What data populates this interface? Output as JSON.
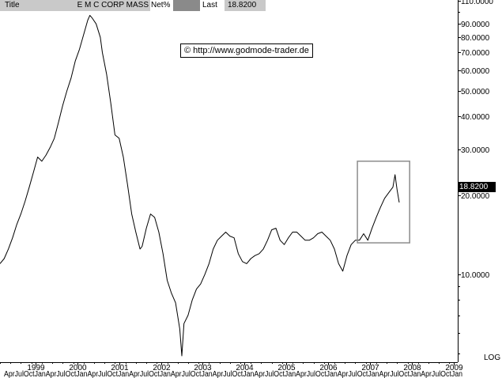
{
  "header": {
    "title_label": "Title",
    "symbol_name": "E M C CORP MASS",
    "mode_label": "Net%",
    "last_label": "Last",
    "last_value": "18.8200"
  },
  "watermark": "© http://www.godmode-trader.de",
  "scale_label": "LOG",
  "last_price_tag": "18.8200",
  "colors": {
    "line": "#000000",
    "background": "#ffffff",
    "box": "#8c8c8c",
    "header_grey": "#c9c9c9",
    "header_dark": "#8a8a8a"
  },
  "chart_data": {
    "type": "line",
    "title": "E M C CORP MASS",
    "yscale": "log",
    "ylim": [
      4.7,
      111
    ],
    "xlim": [
      1998.15,
      2009.1
    ],
    "y_ticks": [
      {
        "value": 110,
        "label": "110.0000"
      },
      {
        "value": 90,
        "label": "90.0000"
      },
      {
        "value": 80,
        "label": "80.0000"
      },
      {
        "value": 70,
        "label": "70.0000"
      },
      {
        "value": 60,
        "label": "60.0000"
      },
      {
        "value": 50,
        "label": "50.0000"
      },
      {
        "value": 40,
        "label": "40.0000"
      },
      {
        "value": 30,
        "label": "30.0000"
      },
      {
        "value": 20,
        "label": "20.0000"
      },
      {
        "value": 10,
        "label": "10.0000"
      }
    ],
    "y_minor_ticks": [
      100,
      9,
      8,
      7,
      6,
      5
    ],
    "x_year_ticks": [
      "1999",
      "2000",
      "2001",
      "2002",
      "2003",
      "2004",
      "2005",
      "2006",
      "2007",
      "2008",
      "2009"
    ],
    "x_year_values": [
      1999,
      2000,
      2001,
      2002,
      2003,
      2004,
      2005,
      2006,
      2007,
      2008,
      2009
    ],
    "x_sub_labels": "AprJulOctJanAprJulOctJanAprJulOctJanAprJulOctJanAprJulOctJanAprJulOctJanAprJulOctJanAprJulOctJanAprJulOctJanAprJulOctJanAprJulOctJan",
    "series": [
      {
        "x": [
          1998.15,
          1998.25,
          1998.35,
          1998.45,
          1998.55,
          1998.65,
          1998.75,
          1998.85,
          1998.95,
          1999.05,
          1999.15,
          1999.25,
          1999.35,
          1999.45,
          1999.55,
          1999.65,
          1999.75,
          1999.85,
          1999.95,
          2000.05,
          2000.15,
          2000.25,
          2000.3,
          2000.35,
          2000.45,
          2000.55,
          2000.6,
          2000.7,
          2000.8,
          2000.9,
          2001.0,
          2001.1,
          2001.2,
          2001.3,
          2001.4,
          2001.5,
          2001.55,
          2001.65,
          2001.75,
          2001.85,
          2001.95,
          2002.05,
          2002.15,
          2002.25,
          2002.35,
          2002.45,
          2002.5,
          2002.55,
          2002.65,
          2002.75,
          2002.85,
          2002.95,
          2003.05,
          2003.15,
          2003.25,
          2003.35,
          2003.45,
          2003.55,
          2003.65,
          2003.75,
          2003.85,
          2003.95,
          2004.05,
          2004.15,
          2004.25,
          2004.35,
          2004.45,
          2004.55,
          2004.65,
          2004.75,
          2004.85,
          2004.95,
          2005.05,
          2005.15,
          2005.25,
          2005.35,
          2005.45,
          2005.55,
          2005.65,
          2005.75,
          2005.85,
          2005.95,
          2006.05,
          2006.15,
          2006.25,
          2006.35,
          2006.45,
          2006.55,
          2006.65,
          2006.75,
          2006.85,
          2006.95,
          2007.05,
          2007.15,
          2007.25,
          2007.35,
          2007.45,
          2007.5,
          2007.55,
          2007.6,
          2007.65,
          2007.7
        ],
        "y": [
          11.0,
          11.5,
          12.5,
          13.8,
          15.5,
          17.0,
          19.0,
          21.5,
          24.5,
          28.0,
          27.0,
          28.5,
          30.5,
          33.0,
          38.0,
          44.0,
          50.0,
          56.0,
          65.0,
          72.0,
          82.0,
          93.0,
          97.0,
          95.0,
          90.0,
          80.0,
          70.0,
          58.0,
          45.0,
          34.0,
          33.0,
          28.0,
          22.0,
          17.0,
          14.5,
          12.5,
          12.8,
          15.0,
          17.0,
          16.5,
          14.5,
          12.0,
          9.5,
          8.5,
          7.8,
          6.2,
          4.9,
          6.5,
          7.0,
          8.0,
          8.8,
          9.2,
          10.0,
          11.0,
          12.5,
          13.5,
          14.0,
          14.5,
          14.0,
          13.8,
          12.0,
          11.2,
          11.0,
          11.5,
          11.8,
          12.0,
          12.5,
          13.5,
          14.8,
          15.0,
          13.5,
          13.0,
          13.8,
          14.5,
          14.5,
          14.0,
          13.5,
          13.5,
          13.8,
          14.3,
          14.5,
          14.0,
          13.5,
          12.5,
          11.0,
          10.3,
          11.8,
          13.0,
          13.5,
          13.5,
          14.3,
          13.5,
          15.0,
          16.5,
          18.0,
          19.5,
          20.5,
          21.0,
          21.5,
          24.0,
          21.0,
          18.8
        ]
      }
    ],
    "highlight_box": {
      "x": [
        2006.7,
        2007.95
      ],
      "y": [
        13.2,
        27.0
      ]
    }
  }
}
